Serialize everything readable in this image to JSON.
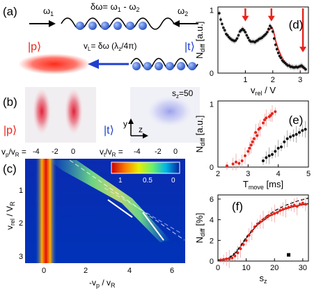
{
  "panels": {
    "a": {
      "label": "(a)",
      "delta_omega_eq": "δω= ω₁ - ω₂",
      "omega1": "ω₁",
      "omega2": "ω₂",
      "vL_eq": "v_L= δω (λ_z/4π)",
      "p_label": "|p⟩",
      "t_label": "|t⟩",
      "colors": {
        "red": "#e8241c",
        "blue": "#1f3fd0",
        "atom": "#3c6fd8"
      }
    },
    "b": {
      "label": "(b)",
      "p_label": "|p⟩",
      "t_label": "|t⟩",
      "sz_label": "s_z=50",
      "axis_y": "y",
      "axis_z": "z",
      "vp_label": "v_p/v_R",
      "vt_label": "v_t/v_R",
      "ticks_p": [
        "-4",
        "-2",
        "0"
      ],
      "ticks_t": [
        "-4",
        "-2",
        "0"
      ]
    },
    "c": {
      "label": "(c)",
      "ylabel": "v_rel / V_R",
      "xlabel": "-v_p / v_R",
      "yticks": [
        "1",
        "2",
        "3"
      ],
      "xticks": [
        "0",
        "2",
        "4",
        "6"
      ],
      "colorbar_ticks": [
        "1",
        "0.5",
        "0"
      ]
    }
  },
  "chart_data": [
    {
      "id": "d",
      "type": "line",
      "label": "(d)",
      "xlabel": "v_rel / V_R",
      "ylabel": "N_diff [a.u.]",
      "xlim": [
        0.0,
        3.3
      ],
      "ylim": [
        0.0,
        1.05
      ],
      "xticks": [
        "1",
        "2",
        "3"
      ],
      "yticks": [
        "0",
        "1"
      ],
      "arrows_x": [
        1.0,
        1.95,
        3.1
      ],
      "x": [
        0.05,
        0.1,
        0.15,
        0.2,
        0.25,
        0.3,
        0.35,
        0.4,
        0.45,
        0.5,
        0.55,
        0.6,
        0.65,
        0.7,
        0.75,
        0.8,
        0.85,
        0.9,
        0.95,
        1.0,
        1.05,
        1.1,
        1.15,
        1.2,
        1.25,
        1.3,
        1.35,
        1.4,
        1.45,
        1.5,
        1.55,
        1.6,
        1.65,
        1.7,
        1.75,
        1.8,
        1.85,
        1.9,
        1.95,
        2.0,
        2.05,
        2.1,
        2.15,
        2.2,
        2.25,
        2.3,
        2.35,
        2.4,
        2.45,
        2.5,
        2.55,
        2.6,
        2.65,
        2.7,
        2.75,
        2.8,
        2.85,
        2.9,
        2.95,
        3.0,
        3.05,
        3.1,
        3.15,
        3.2
      ],
      "y": [
        0.95,
        0.85,
        0.78,
        0.72,
        0.68,
        0.62,
        0.6,
        0.57,
        0.55,
        0.53,
        0.52,
        0.51,
        0.52,
        0.55,
        0.6,
        0.66,
        0.68,
        0.7,
        0.68,
        0.65,
        0.6,
        0.56,
        0.52,
        0.5,
        0.5,
        0.5,
        0.49,
        0.51,
        0.52,
        0.54,
        0.55,
        0.56,
        0.58,
        0.6,
        0.62,
        0.65,
        0.7,
        0.75,
        0.72,
        0.66,
        0.55,
        0.45,
        0.38,
        0.32,
        0.27,
        0.24,
        0.2,
        0.18,
        0.16,
        0.14,
        0.12,
        0.12,
        0.1,
        0.1,
        0.09,
        0.09,
        0.1,
        0.09,
        0.1,
        0.11,
        0.12,
        0.1,
        0.08,
        0.06
      ],
      "fit_x": [
        1.5,
        1.6,
        1.7,
        1.8,
        1.9,
        1.95,
        2.0,
        2.05,
        2.1,
        2.2,
        2.3,
        2.4,
        2.5,
        2.6,
        2.8,
        3.0,
        3.2
      ],
      "fit_y": [
        0.54,
        0.57,
        0.6,
        0.65,
        0.7,
        0.73,
        0.7,
        0.62,
        0.52,
        0.38,
        0.28,
        0.2,
        0.15,
        0.12,
        0.1,
        0.1,
        0.06
      ]
    },
    {
      "id": "e",
      "type": "scatter",
      "label": "(e)",
      "xlabel": "T_move [ms]",
      "ylabel": "N_diff [a.u.]",
      "xlim": [
        2.0,
        5.0
      ],
      "ylim": [
        0.0,
        1.05
      ],
      "xticks": [
        "2",
        "3",
        "4",
        "5"
      ],
      "yticks": [
        "0",
        "1"
      ],
      "series": [
        {
          "color": "#e8241c",
          "x": [
            2.3,
            2.5,
            2.6,
            2.7,
            2.8,
            2.9,
            3.0,
            3.05,
            3.1,
            3.15,
            3.2,
            3.25,
            3.3,
            3.35,
            3.4,
            3.5,
            3.55,
            3.6,
            3.7,
            3.75,
            3.8,
            3.9
          ],
          "y": [
            0.02,
            0.05,
            0.08,
            0.06,
            0.1,
            0.18,
            0.25,
            0.3,
            0.35,
            0.4,
            0.45,
            0.55,
            0.5,
            0.6,
            0.62,
            0.7,
            0.75,
            0.78,
            0.8,
            0.82,
            0.85,
            0.88
          ]
        },
        {
          "color": "#111111",
          "x": [
            3.5,
            3.6,
            3.7,
            3.8,
            3.9,
            4.0,
            4.1,
            4.2,
            4.3,
            4.4,
            4.5,
            4.6,
            4.7,
            4.8,
            4.9
          ],
          "y": [
            0.1,
            0.15,
            0.18,
            0.2,
            0.25,
            0.3,
            0.32,
            0.4,
            0.45,
            0.48,
            0.5,
            0.52,
            0.55,
            0.58,
            0.6
          ]
        }
      ]
    },
    {
      "id": "f",
      "type": "scatter",
      "label": "(f)",
      "xlabel": "s_z",
      "ylabel": "N_diff [%]",
      "xlim": [
        0,
        32
      ],
      "ylim": [
        0,
        6.4
      ],
      "xticks": [
        "0",
        "10",
        "20",
        "30"
      ],
      "yticks": [
        "0",
        "2",
        "4",
        "6"
      ],
      "points": {
        "x": [
          1,
          2,
          3,
          4,
          5,
          6,
          7,
          8,
          9,
          10,
          11,
          12,
          13,
          14,
          15,
          16,
          17,
          18,
          19,
          20,
          21,
          22,
          23,
          24,
          25,
          26,
          27,
          28,
          29,
          30,
          31
        ],
        "y": [
          0.1,
          0.15,
          0.2,
          0.2,
          0.3,
          0.5,
          0.8,
          1.2,
          1.6,
          2.0,
          2.5,
          2.9,
          3.3,
          3.6,
          3.8,
          4.0,
          4.2,
          4.4,
          4.5,
          4.6,
          4.7,
          4.9,
          5.0,
          5.1,
          5.2,
          5.3,
          5.4,
          5.3,
          5.5,
          5.6,
          5.5
        ]
      },
      "solid_fit": {
        "x": [
          0,
          2,
          4,
          6,
          8,
          10,
          12,
          14,
          16,
          18,
          20,
          22,
          24,
          26,
          28,
          30,
          32
        ],
        "y": [
          0.1,
          0.15,
          0.3,
          0.7,
          1.4,
          2.2,
          2.9,
          3.5,
          3.9,
          4.3,
          4.6,
          4.85,
          5.05,
          5.2,
          5.35,
          5.45,
          5.55
        ]
      },
      "dashed_fit": {
        "x": [
          0,
          2,
          4,
          6,
          8,
          10,
          12,
          14,
          16,
          18,
          20,
          22,
          24,
          26,
          28,
          30,
          32
        ],
        "y": [
          0.1,
          0.15,
          0.35,
          0.8,
          1.5,
          2.3,
          3.0,
          3.6,
          4.1,
          4.5,
          4.85,
          5.15,
          5.4,
          5.6,
          5.8,
          5.95,
          6.1
        ]
      },
      "marker_x": 25,
      "marker_y": 0.6
    }
  ]
}
